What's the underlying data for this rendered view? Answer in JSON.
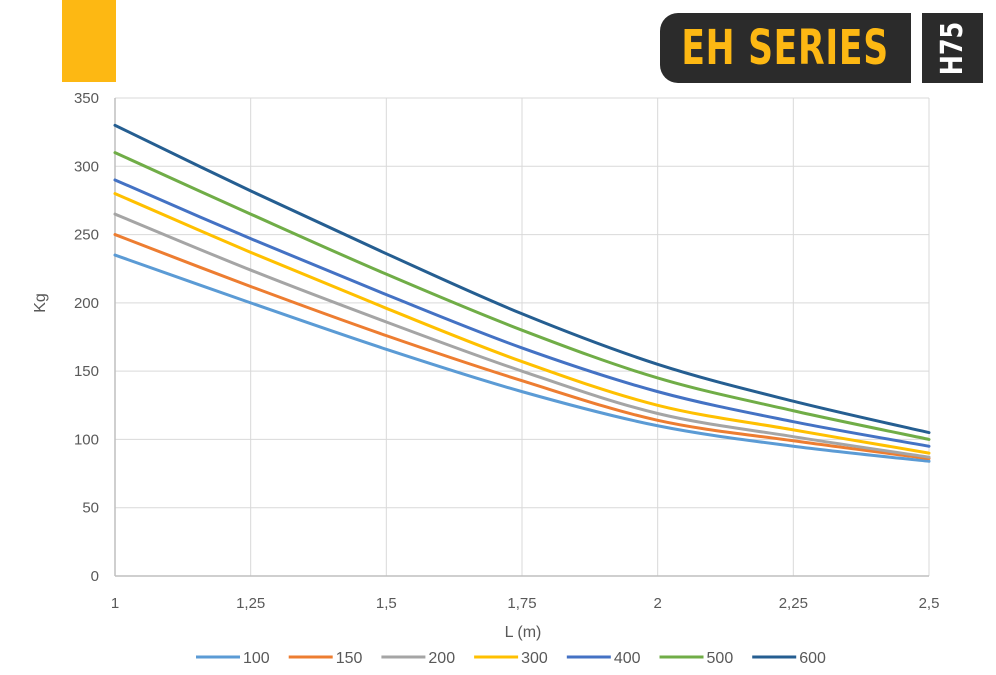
{
  "header": {
    "brand_title": "EH SERIES",
    "model": "H75",
    "accent_color": "#FDB813",
    "badge_color": "#2B2B2B"
  },
  "chart_data": {
    "type": "line",
    "title": "",
    "xlabel": "L (m)",
    "ylabel": "Kg",
    "xlim": [
      1,
      2.5
    ],
    "ylim": [
      0,
      350
    ],
    "x_ticks": [
      1,
      1.25,
      1.5,
      1.75,
      2,
      2.25,
      2.5
    ],
    "x_tick_labels": [
      "1",
      "1,25",
      "1,5",
      "1,75",
      "2",
      "2,25",
      "2,5"
    ],
    "y_ticks": [
      0,
      50,
      100,
      150,
      200,
      250,
      300,
      350
    ],
    "y_tick_labels": [
      "0",
      "50",
      "100",
      "150",
      "200",
      "250",
      "300",
      "350"
    ],
    "grid": true,
    "legend_position": "bottom",
    "x": [
      1,
      1.25,
      1.5,
      1.75,
      2,
      2.25,
      2.5
    ],
    "series": [
      {
        "name": "100",
        "color": "#5B9BD5",
        "values": [
          235,
          200,
          166,
          135,
          110,
          95,
          84
        ]
      },
      {
        "name": "150",
        "color": "#ED7D31",
        "values": [
          250,
          212,
          176,
          143,
          114,
          99,
          86
        ]
      },
      {
        "name": "200",
        "color": "#A5A5A5",
        "values": [
          265,
          224,
          186,
          150,
          119,
          102,
          87
        ]
      },
      {
        "name": "300",
        "color": "#FFC000",
        "values": [
          280,
          237,
          196,
          157,
          125,
          107,
          90
        ]
      },
      {
        "name": "400",
        "color": "#4472C4",
        "values": [
          290,
          247,
          206,
          167,
          135,
          113,
          95
        ]
      },
      {
        "name": "500",
        "color": "#70AD47",
        "values": [
          310,
          265,
          221,
          180,
          145,
          121,
          100
        ]
      },
      {
        "name": "600",
        "color": "#255E91",
        "values": [
          330,
          282,
          236,
          192,
          155,
          128,
          105
        ]
      }
    ]
  }
}
